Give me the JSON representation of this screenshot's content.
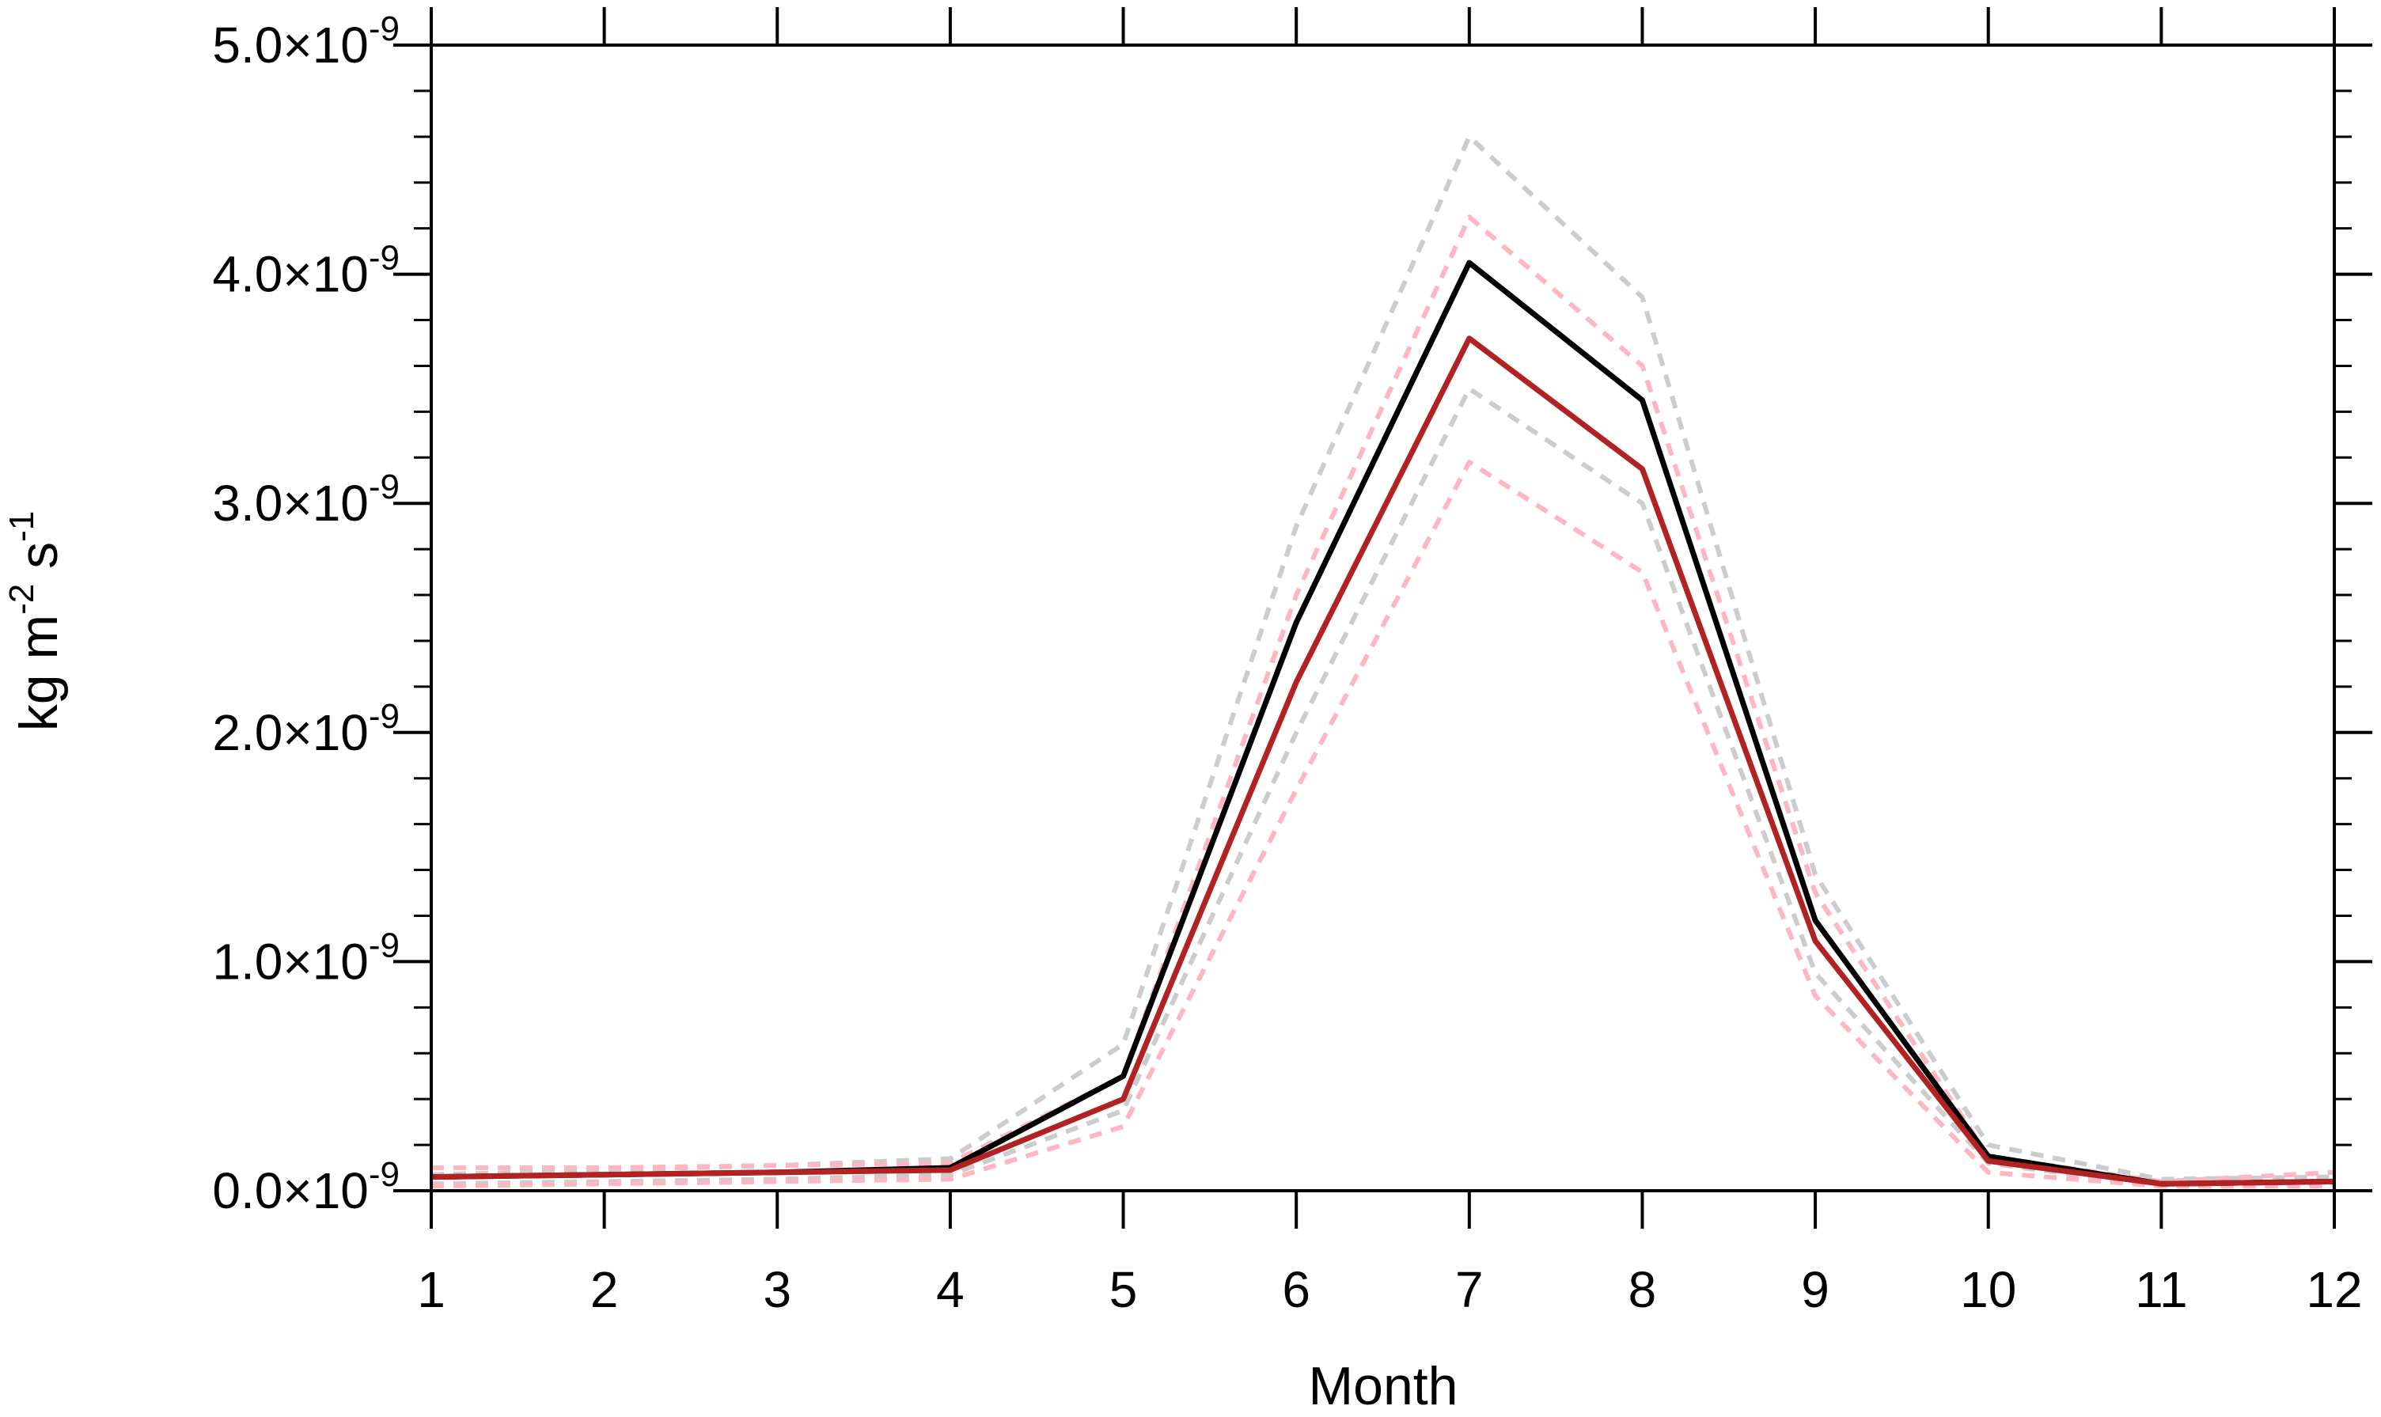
{
  "chart_data": {
    "type": "line",
    "xlabel": "Month",
    "ylabel": {
      "base": "kg m",
      "exp1": "-2",
      "mid": " s",
      "exp2": "-1"
    },
    "x": [
      1,
      2,
      3,
      4,
      5,
      6,
      7,
      8,
      9,
      10,
      11,
      12
    ],
    "xlim": [
      1,
      12
    ],
    "ylim": [
      0,
      5e-09
    ],
    "yticks": [
      {
        "value": 0.0,
        "mantissa": "0.0",
        "times": "×10",
        "exp": "-9"
      },
      {
        "value": 1e-09,
        "mantissa": "1.0",
        "times": "×10",
        "exp": "-9"
      },
      {
        "value": 2e-09,
        "mantissa": "2.0",
        "times": "×10",
        "exp": "-9"
      },
      {
        "value": 3e-09,
        "mantissa": "3.0",
        "times": "×10",
        "exp": "-9"
      },
      {
        "value": 4e-09,
        "mantissa": "4.0",
        "times": "×10",
        "exp": "-9"
      },
      {
        "value": 5e-09,
        "mantissa": "5.0",
        "times": "×10",
        "exp": "-9"
      }
    ],
    "xticks": [
      "1",
      "2",
      "3",
      "4",
      "5",
      "6",
      "7",
      "8",
      "9",
      "10",
      "11",
      "12"
    ],
    "grid": false,
    "legend": "none",
    "series": [
      {
        "color": "#cccccc",
        "dashed": true,
        "values": [
          7e-11,
          9e-11,
          1.1e-10,
          1.4e-10,
          6.4e-10,
          2.9e-09,
          4.6e-09,
          3.9e-09,
          1.38e-09,
          2e-10,
          5e-11,
          6e-11
        ]
      },
      {
        "color": "#cccccc",
        "dashed": true,
        "values": [
          3e-11,
          4e-11,
          5e-11,
          7e-11,
          3.5e-10,
          2e-09,
          3.5e-09,
          3e-09,
          9.5e-10,
          1.2e-10,
          2e-11,
          3e-11
        ]
      },
      {
        "color": "#ffb6c1",
        "dashed": true,
        "values": [
          1e-10,
          1e-10,
          1.1e-10,
          1.2e-10,
          5e-10,
          2.6e-09,
          4.25e-09,
          3.6e-09,
          1.3e-09,
          1.5e-10,
          4e-11,
          8e-11
        ]
      },
      {
        "color": "#ffb6c1",
        "dashed": true,
        "values": [
          2e-11,
          3e-11,
          4e-11,
          5e-11,
          2.8e-10,
          1.75e-09,
          3.18e-09,
          2.7e-09,
          8.5e-10,
          8e-11,
          2e-11,
          2e-11
        ]
      },
      {
        "color": "#000000",
        "dashed": false,
        "values": [
          6e-11,
          7e-11,
          8e-11,
          1e-10,
          5e-10,
          2.48e-09,
          4.05e-09,
          3.45e-09,
          1.18e-09,
          1.5e-10,
          3e-11,
          4e-11
        ]
      },
      {
        "color": "#b22222",
        "dashed": false,
        "values": [
          6e-11,
          7e-11,
          8e-11,
          9e-11,
          4e-10,
          2.22e-09,
          3.72e-09,
          3.15e-09,
          1.09e-09,
          1.3e-10,
          3e-11,
          4e-11
        ]
      }
    ]
  }
}
